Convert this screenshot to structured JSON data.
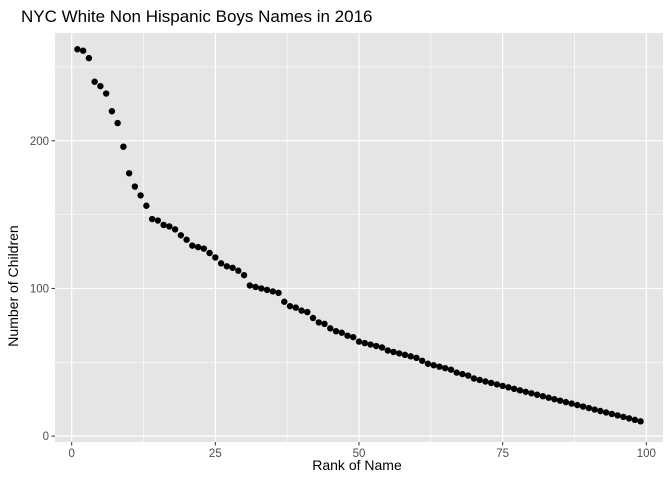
{
  "chart_data": {
    "type": "scatter",
    "title": "NYC White Non Hispanic Boys Names in 2016",
    "xlabel": "Rank of Name",
    "ylabel": "Number of Children",
    "xlim": [
      -2.9,
      102.9
    ],
    "ylim": [
      -4,
      273
    ],
    "x_ticks": [
      0,
      25,
      50,
      75,
      100
    ],
    "y_ticks": [
      0,
      100,
      200
    ],
    "grid": true,
    "legend": "none",
    "colors": {
      "panel": "#e5e5e5",
      "grid": "#ffffff",
      "point": "#000000",
      "tick": "#333333"
    },
    "series": [
      {
        "x": [
          1,
          2,
          3,
          4,
          5,
          6,
          7,
          8,
          9,
          10,
          11,
          12,
          13,
          14,
          15,
          16,
          17,
          18,
          19,
          20,
          21,
          22,
          23,
          24,
          25,
          26,
          27,
          28,
          29,
          30,
          31,
          32,
          33,
          34,
          35,
          36,
          37,
          38,
          39,
          40,
          41,
          42,
          43,
          44,
          45,
          46,
          47,
          48,
          49,
          50,
          51,
          52,
          53,
          54,
          55,
          56,
          57,
          58,
          59,
          60,
          61,
          62,
          63,
          64,
          65,
          66,
          67,
          68,
          69,
          70,
          71,
          72,
          73,
          74,
          75,
          76,
          77,
          78,
          79,
          80,
          81,
          82,
          83,
          84,
          85,
          86,
          87,
          88,
          89,
          90,
          91,
          92,
          93,
          94,
          95,
          96,
          97,
          98,
          99
        ],
        "y": [
          262,
          261,
          256,
          240,
          237,
          232,
          220,
          212,
          196,
          178,
          169,
          163,
          156,
          147,
          146,
          143,
          142,
          140,
          136,
          133,
          129,
          128,
          127,
          124,
          121,
          117,
          115,
          114,
          112,
          109,
          102,
          101,
          100,
          99,
          98,
          97,
          91,
          88,
          87,
          85,
          84,
          80,
          77,
          76,
          73,
          71,
          70,
          68,
          67,
          64,
          63,
          62,
          61,
          60,
          58,
          57,
          56,
          55,
          54,
          53,
          51,
          49,
          48,
          47,
          46,
          45,
          43,
          42,
          41,
          39,
          38,
          37,
          36,
          35,
          34,
          33,
          32,
          31,
          30,
          29,
          28,
          27,
          26,
          25,
          24,
          23,
          22,
          21,
          20,
          19,
          18,
          17,
          16,
          15,
          14,
          13,
          12,
          11,
          10
        ]
      }
    ]
  }
}
